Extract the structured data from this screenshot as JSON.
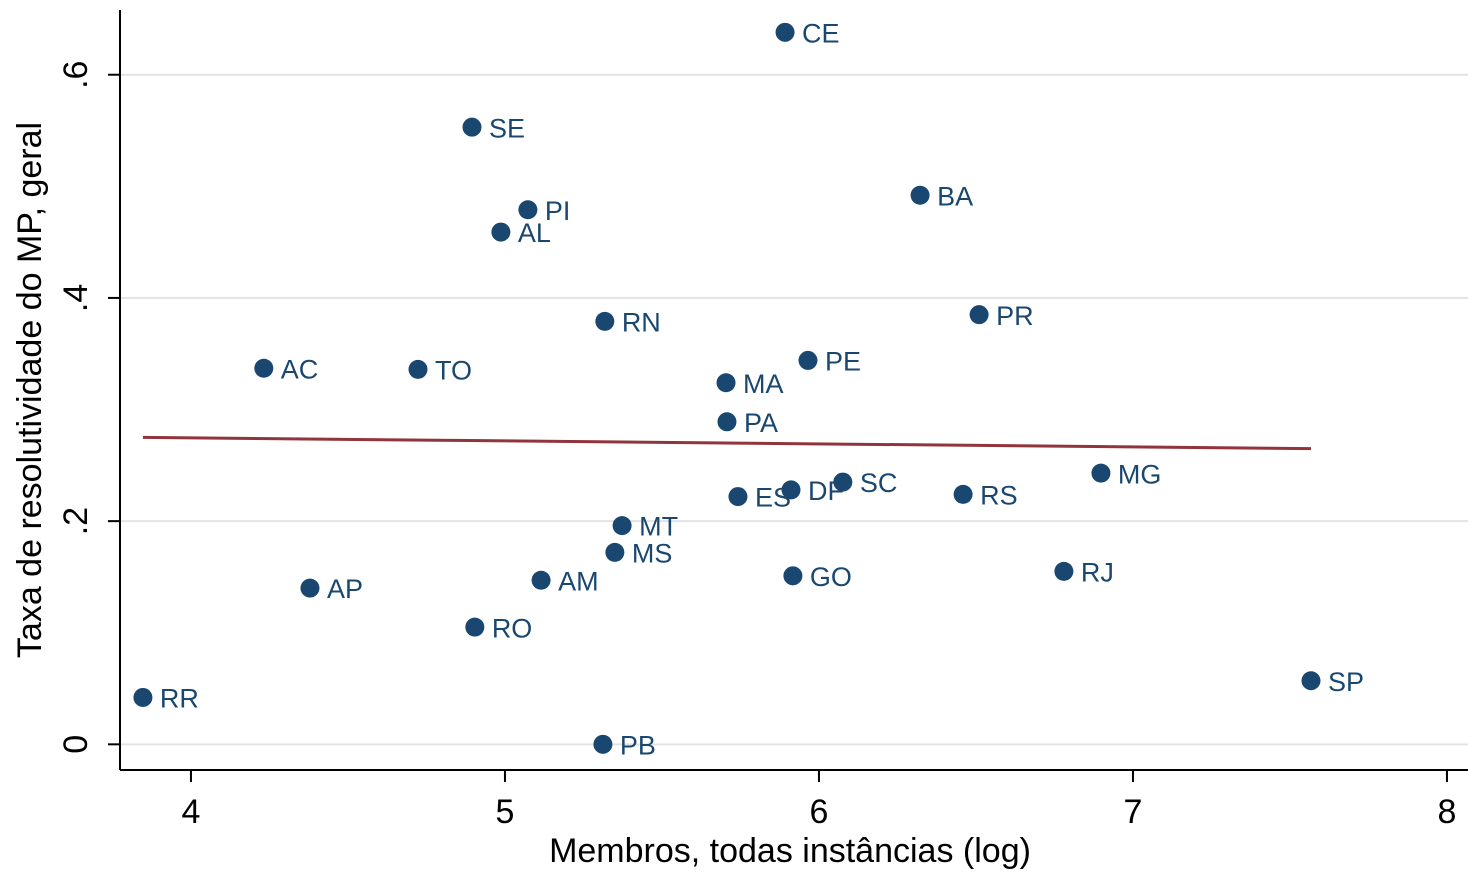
{
  "chart_data": {
    "type": "scatter",
    "xlabel": "Membros, todas instâncias (log)",
    "ylabel": "Taxa de resolutividade do MP, geral",
    "point_labels": [
      "CE",
      "SE",
      "PI",
      "AL",
      "BA",
      "PR",
      "RN",
      "AC",
      "TO",
      "PE",
      "MA",
      "PA",
      "MG",
      "SC",
      "DF",
      "ES",
      "RS",
      "MT",
      "MS",
      "AM",
      "GO",
      "RJ",
      "AP",
      "RO",
      "RR",
      "SP",
      "PB"
    ],
    "x": [
      5.892,
      4.895,
      5.073,
      4.987,
      6.322,
      6.51,
      5.318,
      4.232,
      4.723,
      5.965,
      5.704,
      5.707,
      6.898,
      6.076,
      5.911,
      5.742,
      6.459,
      5.373,
      5.35,
      5.115,
      5.917,
      6.78,
      4.379,
      4.904,
      3.847,
      7.567,
      5.312
    ],
    "values": [
      0.638,
      0.553,
      0.479,
      0.459,
      0.492,
      0.385,
      0.379,
      0.337,
      0.336,
      0.344,
      0.324,
      0.289,
      0.243,
      0.235,
      0.228,
      0.222,
      0.224,
      0.196,
      0.172,
      0.147,
      0.151,
      0.155,
      0.14,
      0.105,
      0.042,
      0.057,
      0.0
    ],
    "color": "#1a476f",
    "fit": {
      "type": "line",
      "x": [
        3.847,
        7.567
      ],
      "values": [
        0.275,
        0.265
      ],
      "color": "#90353b"
    },
    "xlim": [
      3.774,
      8.067
    ],
    "ylim": [
      -0.023,
      0.658
    ],
    "xticks": [
      4,
      5,
      6,
      7,
      8
    ],
    "yticks": [
      0,
      {
        "value": 0.2,
        "label": ".2"
      },
      {
        "value": 0.4,
        "label": ".4"
      },
      {
        "value": 0.6,
        "label": ".6"
      }
    ],
    "grid": true
  }
}
